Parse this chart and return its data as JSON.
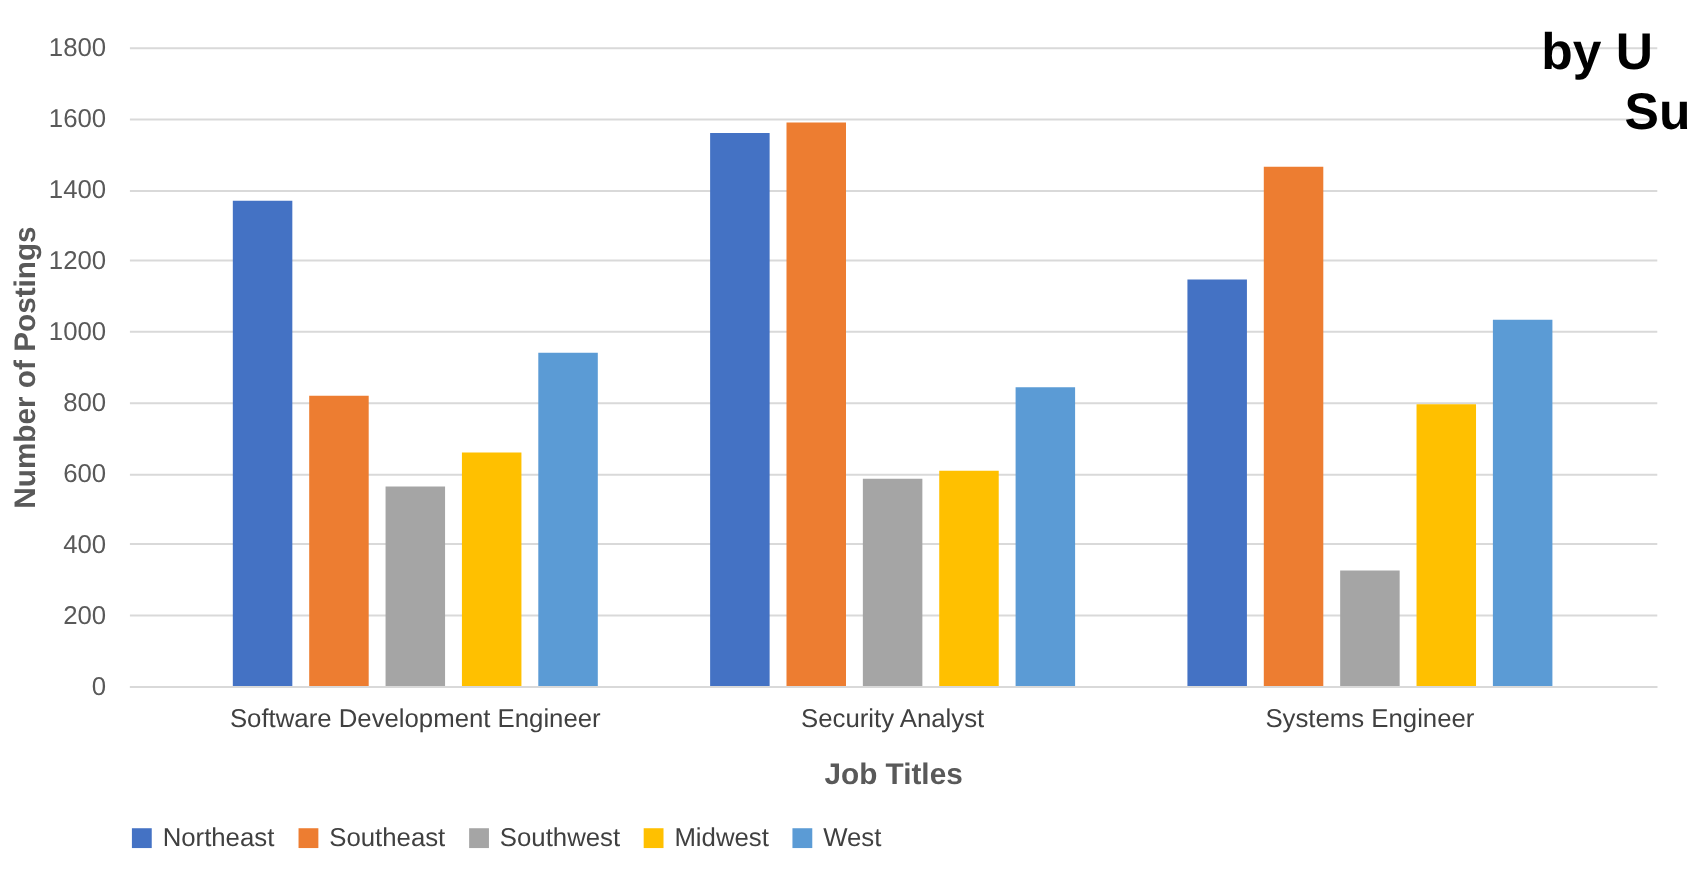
{
  "chart_data": {
    "type": "bar",
    "categories": [
      "Software Development Engineer",
      "Security Analyst",
      "Systems Engineer"
    ],
    "series": [
      {
        "name": "Northeast",
        "color": "#4472c4",
        "values": [
          1367,
          1558,
          1145
        ]
      },
      {
        "name": "Southeast",
        "color": "#ed7d31",
        "values": [
          818,
          1588,
          1463
        ]
      },
      {
        "name": "Southwest",
        "color": "#a5a5a5",
        "values": [
          562,
          584,
          325
        ]
      },
      {
        "name": "Midwest",
        "color": "#ffc000",
        "values": [
          658,
          606,
          794
        ]
      },
      {
        "name": "West",
        "color": "#5b9bd5",
        "values": [
          939,
          842,
          1032
        ]
      }
    ],
    "xlabel": "Job Titles",
    "ylabel": "Number of Postings",
    "ylim": [
      0,
      1800
    ],
    "yticks": [
      0,
      200,
      400,
      600,
      800,
      1000,
      1200,
      1400,
      1600,
      1800
    ],
    "grid": "y",
    "legend": "bottom",
    "annotations": [
      "by U",
      "Su"
    ]
  }
}
